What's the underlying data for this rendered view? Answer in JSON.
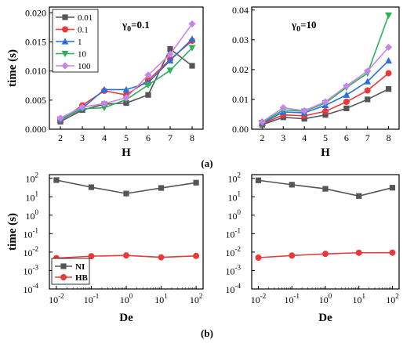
{
  "panel_labels": [
    "(a)",
    "(b)"
  ],
  "chart_data": [
    {
      "type": "line",
      "annotation": "γ0=0.1",
      "xlabel": "H",
      "ylabel": "time (s)",
      "x": [
        2,
        3,
        4,
        5,
        6,
        7,
        8
      ],
      "xlim": [
        1.5,
        8.5
      ],
      "ylim": [
        0,
        0.021
      ],
      "yticks": [
        0.0,
        0.005,
        0.01,
        0.015,
        0.02
      ],
      "ytick_labels": [
        "0.000",
        "0.005",
        "0.010",
        "0.015",
        "0.020"
      ],
      "legend_position": "top-left",
      "series": [
        {
          "name": "0.01",
          "color": "#555555",
          "marker": "square",
          "values": [
            0.0013,
            0.0033,
            0.0043,
            0.0045,
            0.0059,
            0.0138,
            0.0109
          ]
        },
        {
          "name": "0.1",
          "color": "#e8393b",
          "marker": "circle",
          "values": [
            0.0015,
            0.0041,
            0.0066,
            0.0059,
            0.0084,
            0.012,
            0.0152
          ]
        },
        {
          "name": "1",
          "color": "#2b6fde",
          "marker": "triangle-up",
          "values": [
            0.0016,
            0.0036,
            0.0068,
            0.0068,
            0.008,
            0.0118,
            0.0155
          ]
        },
        {
          "name": "10",
          "color": "#2ab15a",
          "marker": "triangle-down",
          "values": [
            0.0017,
            0.0035,
            0.0037,
            0.0051,
            0.0076,
            0.0101,
            0.014
          ]
        },
        {
          "name": "100",
          "color": "#c685e8",
          "marker": "diamond",
          "values": [
            0.0019,
            0.0038,
            0.0044,
            0.0054,
            0.0093,
            0.0129,
            0.0181
          ]
        }
      ]
    },
    {
      "type": "line",
      "annotation": "γ0=10",
      "xlabel": "H",
      "ylabel": "",
      "x": [
        2,
        3,
        4,
        5,
        6,
        7,
        8
      ],
      "xlim": [
        1.5,
        8.5
      ],
      "ylim": [
        0,
        0.041
      ],
      "yticks": [
        0.0,
        0.01,
        0.02,
        0.03,
        0.04
      ],
      "ytick_labels": [
        "0.00",
        "0.01",
        "0.02",
        "0.03",
        "0.04"
      ],
      "series": [
        {
          "name": "0.01",
          "color": "#555555",
          "marker": "square",
          "values": [
            0.0015,
            0.004,
            0.0035,
            0.0048,
            0.007,
            0.01,
            0.0135
          ]
        },
        {
          "name": "0.1",
          "color": "#e8393b",
          "marker": "circle",
          "values": [
            0.0018,
            0.0048,
            0.0045,
            0.006,
            0.0092,
            0.013,
            0.0188
          ]
        },
        {
          "name": "1",
          "color": "#2b6fde",
          "marker": "triangle-up",
          "values": [
            0.002,
            0.0058,
            0.0055,
            0.008,
            0.0115,
            0.016,
            0.023
          ]
        },
        {
          "name": "10",
          "color": "#2ab15a",
          "marker": "triangle-down",
          "values": [
            0.0022,
            0.0065,
            0.006,
            0.0088,
            0.014,
            0.0188,
            0.0382
          ]
        },
        {
          "name": "100",
          "color": "#c685e8",
          "marker": "diamond",
          "values": [
            0.0025,
            0.0072,
            0.0062,
            0.0092,
            0.0145,
            0.0195,
            0.0275
          ]
        }
      ]
    },
    {
      "type": "line",
      "xlabel": "De",
      "ylabel": "time (s)",
      "xscale": "log",
      "yscale": "log",
      "x": [
        0.01,
        0.1,
        1,
        10,
        100
      ],
      "xlim_exp": [
        -2.2,
        2.2
      ],
      "ylim_exp": [
        -4,
        2.2
      ],
      "xticks_exp": [
        -2,
        -1,
        0,
        1,
        2
      ],
      "yticks_exp": [
        -4,
        -3,
        -2,
        -1,
        0,
        1,
        2
      ],
      "legend_position": "bottom-left",
      "series": [
        {
          "name": "NI",
          "color": "#555555",
          "marker": "square",
          "values": [
            80,
            33,
            15,
            30,
            58
          ]
        },
        {
          "name": "HB",
          "color": "#e8393b",
          "marker": "circle",
          "values": [
            0.0047,
            0.006,
            0.0066,
            0.0052,
            0.0062
          ]
        }
      ]
    },
    {
      "type": "line",
      "xlabel": "De",
      "ylabel": "",
      "xscale": "log",
      "yscale": "log",
      "x": [
        0.01,
        0.1,
        1,
        10,
        100
      ],
      "xlim_exp": [
        -2.2,
        2.2
      ],
      "ylim_exp": [
        -4,
        2.2
      ],
      "xticks_exp": [
        -2,
        -1,
        0,
        1,
        2
      ],
      "yticks_exp": [
        -4,
        -3,
        -2,
        -1,
        0,
        1,
        2
      ],
      "series": [
        {
          "name": "NI",
          "color": "#555555",
          "marker": "square",
          "values": [
            78,
            45,
            27,
            11,
            31
          ]
        },
        {
          "name": "HB",
          "color": "#e8393b",
          "marker": "circle",
          "values": [
            0.005,
            0.0065,
            0.008,
            0.0092,
            0.0093
          ]
        }
      ]
    }
  ]
}
